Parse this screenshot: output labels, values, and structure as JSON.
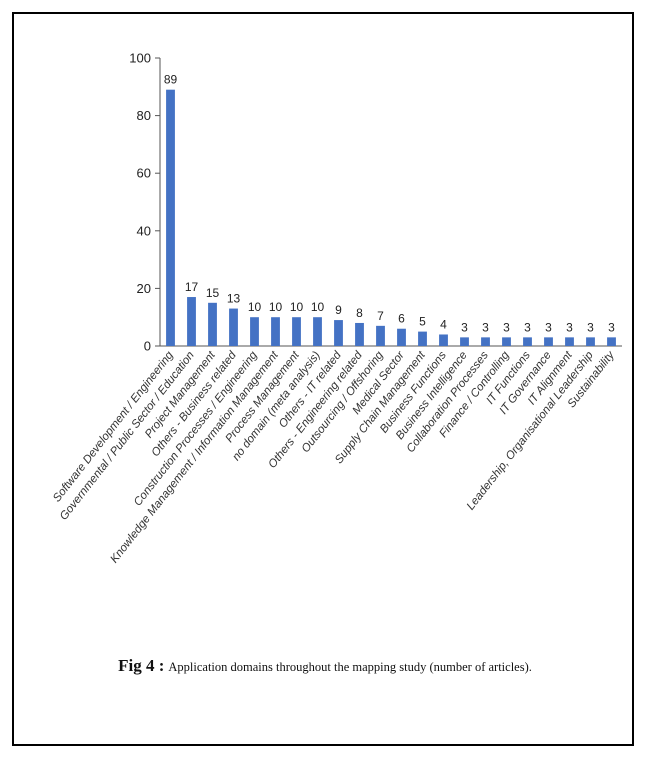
{
  "caption": {
    "figure": "Fig 4 :",
    "text": "Application domains throughout the mapping study (number of articles)."
  },
  "colors": {
    "bar": "#4472C4",
    "axis": "#555555"
  },
  "chart_data": {
    "type": "bar",
    "title": "",
    "xlabel": "",
    "ylabel": "",
    "ylim": [
      0,
      100
    ],
    "yticks": [
      0,
      20,
      40,
      60,
      80,
      100
    ],
    "grid": false,
    "legend": "none",
    "categories": [
      "Software Development / Engineering",
      "Governmental / Public Sector / Education",
      "Project Management",
      "Others - Business related",
      "Construction Processes / Engineering",
      "Knowledge Management / Information Management",
      "Process Management",
      "no domain (meta analysis)",
      "Others - IT related",
      "Others - Engineering related",
      "Outsourcing / Offshoring",
      "Medical Sector",
      "Supply Chain Management",
      "Business Functions",
      "Business Intelligence",
      "Collaboration Processes",
      "Finance / Controlling",
      "IT Functions",
      "IT Governance",
      "IT Alignment",
      "Leadership, Organisational Leadership",
      "Sustainability"
    ],
    "values": [
      89,
      17,
      15,
      13,
      10,
      10,
      10,
      10,
      9,
      8,
      7,
      6,
      5,
      4,
      3,
      3,
      3,
      3,
      3,
      3,
      3,
      3
    ]
  }
}
